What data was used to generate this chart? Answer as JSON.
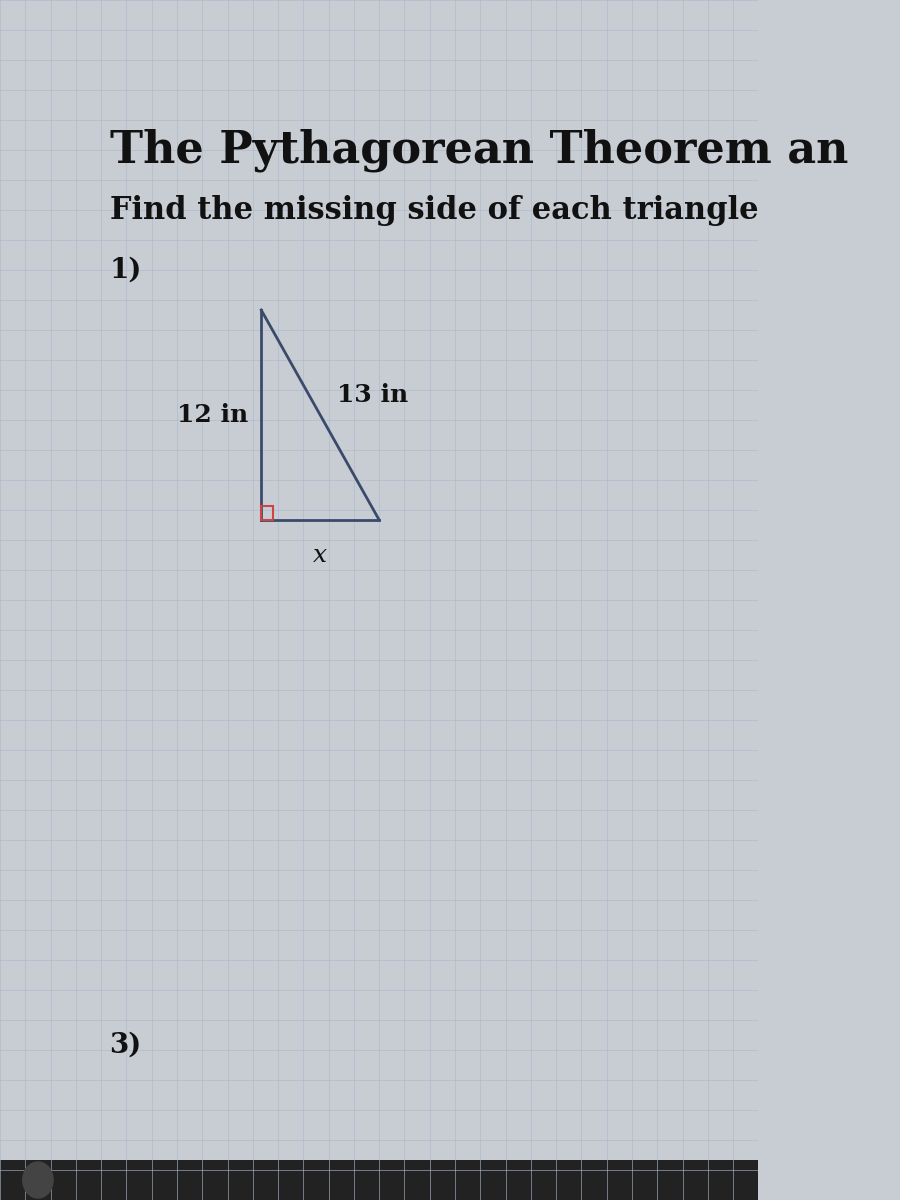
{
  "title": "The Pythagorean Theorem an",
  "subtitle": "Find the missing side of each triangle",
  "title_fontsize": 32,
  "subtitle_fontsize": 22,
  "problem_number": "1)",
  "problem_number_fontsize": 20,
  "background_color": "#c8cdd4",
  "grid_color": "#aab8cc",
  "triangle_color": "#3a4a6a",
  "right_angle_color": "#cc4444",
  "label_left": "12 in",
  "label_hyp": "13 in",
  "label_bottom": "x",
  "label_fontsize": 18,
  "second_problem": "3)",
  "second_problem_fontsize": 20,
  "text_color": "#111111"
}
